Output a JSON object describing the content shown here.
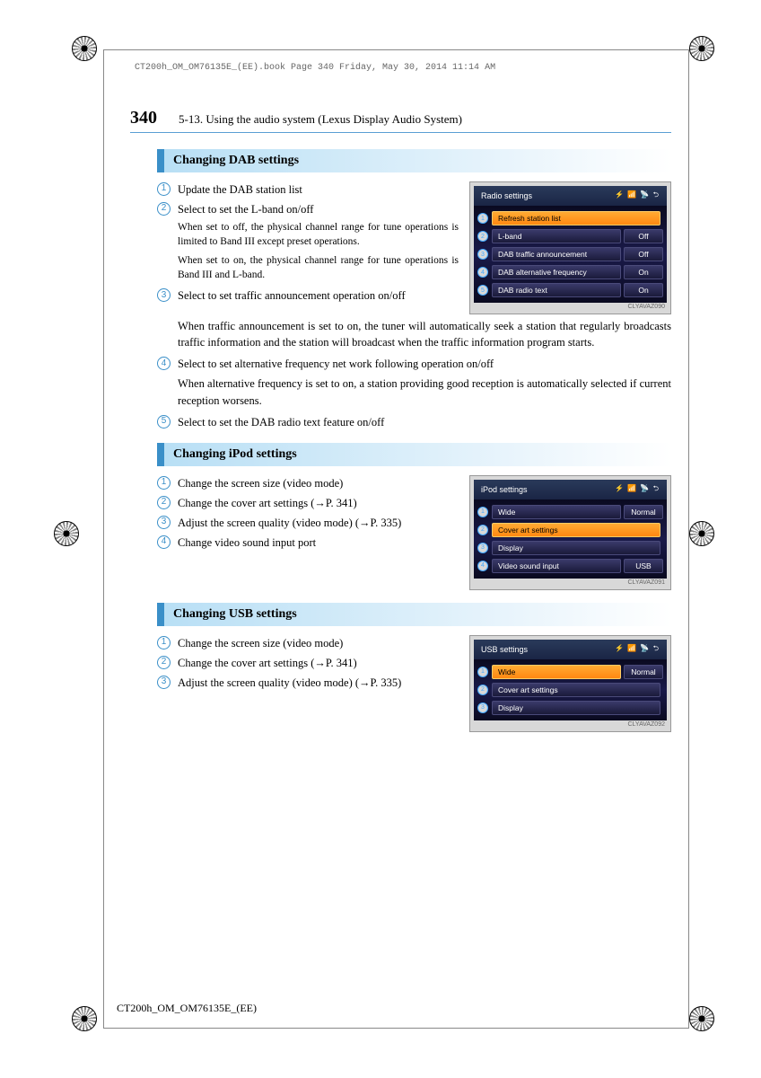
{
  "header_note": "CT200h_OM_OM76135E_(EE).book  Page 340  Friday, May 30, 2014  11:14 AM",
  "page_number": "340",
  "chapter": "5-13. Using the audio system (Lexus Display Audio System)",
  "footer_code": "CT200h_OM_OM76135E_(EE)",
  "sections": {
    "dab": {
      "heading": "Changing DAB settings",
      "items": [
        {
          "n": "1",
          "text": "Update the DAB station list"
        },
        {
          "n": "2",
          "text": "Select to set the L-band on/off"
        }
      ],
      "sub1": "When set to off, the physical channel range for tune operations is limited to Band III except preset operations.",
      "sub2": "When set to on, the physical channel range for tune operations is Band III and L-band.",
      "item3": {
        "n": "3",
        "text": "Select to set traffic announcement operation on/off"
      },
      "sub3": "When traffic announcement is set to on, the tuner will automatically seek a station that regularly broadcasts traffic information and the station will broadcast when the traffic information program starts.",
      "item4": {
        "n": "4",
        "text": "Select to set alternative frequency net work following operation on/off"
      },
      "sub4": "When alternative frequency is set to on, a station providing good reception is automatically selected if current reception worsens.",
      "item5": {
        "n": "5",
        "text": "Select to set the DAB radio text feature on/off"
      },
      "screen": {
        "title": "Radio settings",
        "icons": "⚡ 📶 📡 ⮌",
        "rows": [
          {
            "n": "1",
            "label": "Refresh station list",
            "val": "",
            "hl": true
          },
          {
            "n": "2",
            "label": "L-band",
            "val": "Off"
          },
          {
            "n": "3",
            "label": "DAB traffic announcement",
            "val": "Off"
          },
          {
            "n": "4",
            "label": "DAB alternative frequency",
            "val": "On"
          },
          {
            "n": "5",
            "label": "DAB radio text",
            "val": "On"
          }
        ],
        "code": "CLYAVAZ090"
      }
    },
    "ipod": {
      "heading": "Changing iPod settings",
      "items": [
        {
          "n": "1",
          "text": "Change the screen size (video mode)"
        },
        {
          "n": "2",
          "text": "Change the cover art settings (→P. 341)"
        },
        {
          "n": "3",
          "text": "Adjust the screen quality (video mode) (→P. 335)"
        },
        {
          "n": "4",
          "text": "Change video sound input port"
        }
      ],
      "screen": {
        "title": "iPod settings",
        "icons": "⚡ 📶 📡 ⮌",
        "rows": [
          {
            "n": "1",
            "label": "Wide",
            "val": "Normal"
          },
          {
            "n": "2",
            "label": "Cover art settings",
            "val": "",
            "hl": true
          },
          {
            "n": "3",
            "label": "Display",
            "val": ""
          },
          {
            "n": "4",
            "label": "Video sound input",
            "val": "USB"
          }
        ],
        "code": "CLYAVAZ091"
      }
    },
    "usb": {
      "heading": "Changing USB settings",
      "items": [
        {
          "n": "1",
          "text": "Change the screen size (video mode)"
        },
        {
          "n": "2",
          "text": "Change the cover art settings (→P. 341)"
        },
        {
          "n": "3",
          "text": "Adjust the screen quality (video mode) (→P. 335)"
        }
      ],
      "screen": {
        "title": "USB settings",
        "icons": "⚡ 📶 📡 ⮌",
        "rows": [
          {
            "n": "1",
            "label": "Wide",
            "val": "Normal",
            "hl": true
          },
          {
            "n": "2",
            "label": "Cover art settings",
            "val": ""
          },
          {
            "n": "3",
            "label": "Display",
            "val": ""
          }
        ],
        "code": "CLYAVAZ092"
      }
    }
  }
}
